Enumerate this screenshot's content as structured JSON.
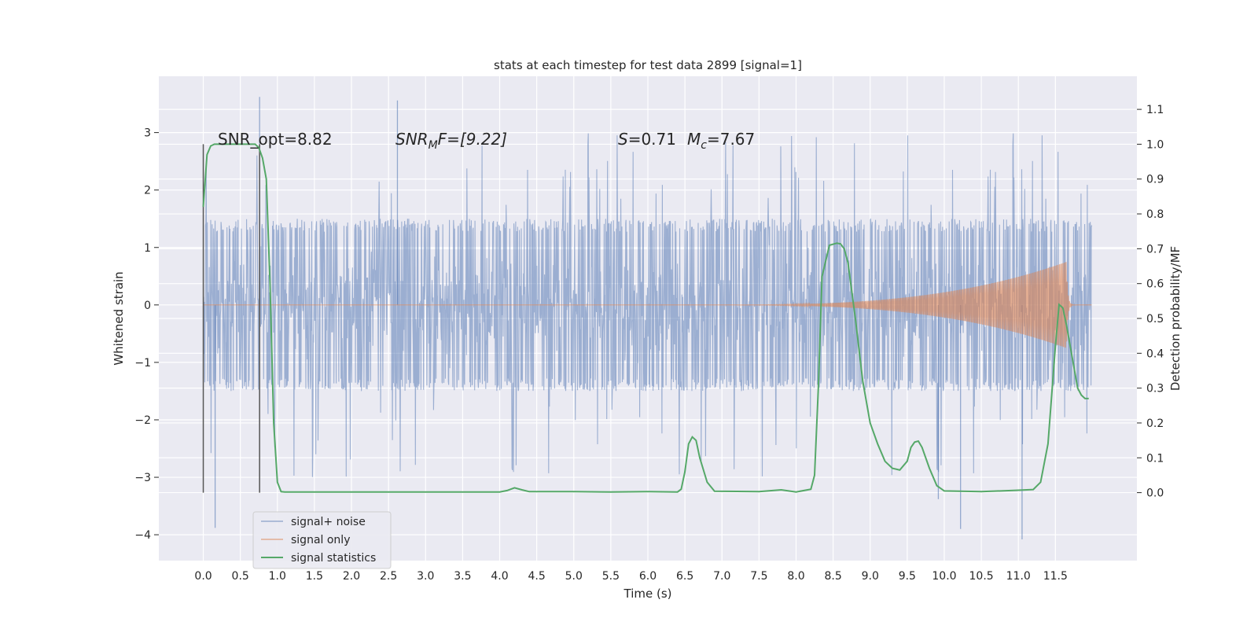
{
  "chart_data": {
    "type": "line",
    "title": "stats at each timestep for test data 2899 [signal=1]",
    "xlabel": "Time (s)",
    "ylabel": "Whitened strain",
    "ylabel_right": "Detection probability/MF",
    "xlim": [
      -0.6,
      12.6
    ],
    "ylim": [
      -4.45,
      3.98
    ],
    "ylim_right": [
      -0.195,
      1.195
    ],
    "xticks": [
      "0.0",
      "0.5",
      "1.0",
      "1.5",
      "2.0",
      "2.5",
      "3.0",
      "3.5",
      "4.0",
      "4.5",
      "5.0",
      "5.5",
      "6.0",
      "6.5",
      "7.0",
      "7.5",
      "8.0",
      "8.5",
      "9.0",
      "9.5",
      "10.0",
      "10.5",
      "11.0",
      "11.5"
    ],
    "yticks": [
      "3",
      "2",
      "1",
      "0",
      "−1",
      "−2",
      "−3",
      "−4"
    ],
    "yticks_right": [
      "1.1",
      "1.0",
      "0.9",
      "0.8",
      "0.7",
      "0.6",
      "0.5",
      "0.4",
      "0.3",
      "0.2",
      "0.1",
      "0.0"
    ],
    "grid": true,
    "legend_position": "lower-left",
    "annotations": {
      "snr_opt": "SNR_opt=8.82",
      "snr_mf_prefix": "SNR",
      "snr_mf_sub": "M",
      "snr_mf_suffix": "F=[9.22]",
      "s_label": "S",
      "s_value": "=0.71",
      "mc_label": "M",
      "mc_sub": "c",
      "mc_value": "=7.67"
    },
    "vlines": [
      0.0,
      0.76
    ],
    "series": [
      {
        "name": "signal+ noise",
        "color": "#4c72b0",
        "axis": "left",
        "description": "noisy whitened strain, roughly within ±1.6 with spikes to ±3.6",
        "x_range": [
          0.0,
          11.99
        ],
        "envelope_typical": 1.5,
        "peaks": [
          {
            "x": 0.76,
            "y": 3.62
          },
          {
            "x": 2.62,
            "y": 3.56
          },
          {
            "x": 0.16,
            "y": -3.88
          },
          {
            "x": 10.22,
            "y": -3.9
          },
          {
            "x": 11.05,
            "y": -4.08
          },
          {
            "x": 9.92,
            "y": -3.38
          }
        ]
      },
      {
        "name": "signal only",
        "color": "#dd8452",
        "axis": "left",
        "description": "chirp signal growing from ~7 s to 11.65 s",
        "start": 7.0,
        "peak_time": 11.65,
        "peak_amplitude": 0.75
      },
      {
        "name": "signal statistics",
        "color": "#55a868",
        "axis": "right",
        "x": [
          0.0,
          0.05,
          0.1,
          0.15,
          0.2,
          0.3,
          0.4,
          0.5,
          0.6,
          0.65,
          0.7,
          0.75,
          0.8,
          0.85,
          0.9,
          0.95,
          1.0,
          1.05,
          1.1,
          1.5,
          2.0,
          3.0,
          3.5,
          4.0,
          4.1,
          4.2,
          4.3,
          4.4,
          5.0,
          5.5,
          6.0,
          6.4,
          6.45,
          6.5,
          6.55,
          6.6,
          6.65,
          6.7,
          6.8,
          6.9,
          7.5,
          7.8,
          8.0,
          8.2,
          8.25,
          8.3,
          8.35,
          8.45,
          8.55,
          8.6,
          8.65,
          8.7,
          8.8,
          8.9,
          9.0,
          9.1,
          9.2,
          9.3,
          9.4,
          9.5,
          9.55,
          9.6,
          9.65,
          9.7,
          9.8,
          9.9,
          10.0,
          10.5,
          11.0,
          11.2,
          11.3,
          11.4,
          11.5,
          11.55,
          11.6,
          11.65,
          11.7,
          11.75,
          11.8,
          11.85,
          11.9,
          11.95
        ],
        "y": [
          0.82,
          0.97,
          0.995,
          1.0,
          1.0,
          1.0,
          1.0,
          1.0,
          1.0,
          1.0,
          1.0,
          0.99,
          0.96,
          0.9,
          0.6,
          0.2,
          0.03,
          0.003,
          0.002,
          0.002,
          0.002,
          0.002,
          0.002,
          0.002,
          0.006,
          0.014,
          0.008,
          0.003,
          0.003,
          0.002,
          0.003,
          0.002,
          0.01,
          0.06,
          0.14,
          0.16,
          0.15,
          0.1,
          0.03,
          0.004,
          0.003,
          0.008,
          0.002,
          0.01,
          0.05,
          0.3,
          0.62,
          0.71,
          0.716,
          0.714,
          0.7,
          0.66,
          0.5,
          0.32,
          0.2,
          0.14,
          0.09,
          0.07,
          0.065,
          0.09,
          0.13,
          0.145,
          0.148,
          0.13,
          0.07,
          0.02,
          0.005,
          0.003,
          0.007,
          0.009,
          0.03,
          0.14,
          0.42,
          0.54,
          0.53,
          0.48,
          0.42,
          0.36,
          0.3,
          0.28,
          0.27,
          0.27
        ]
      }
    ]
  }
}
